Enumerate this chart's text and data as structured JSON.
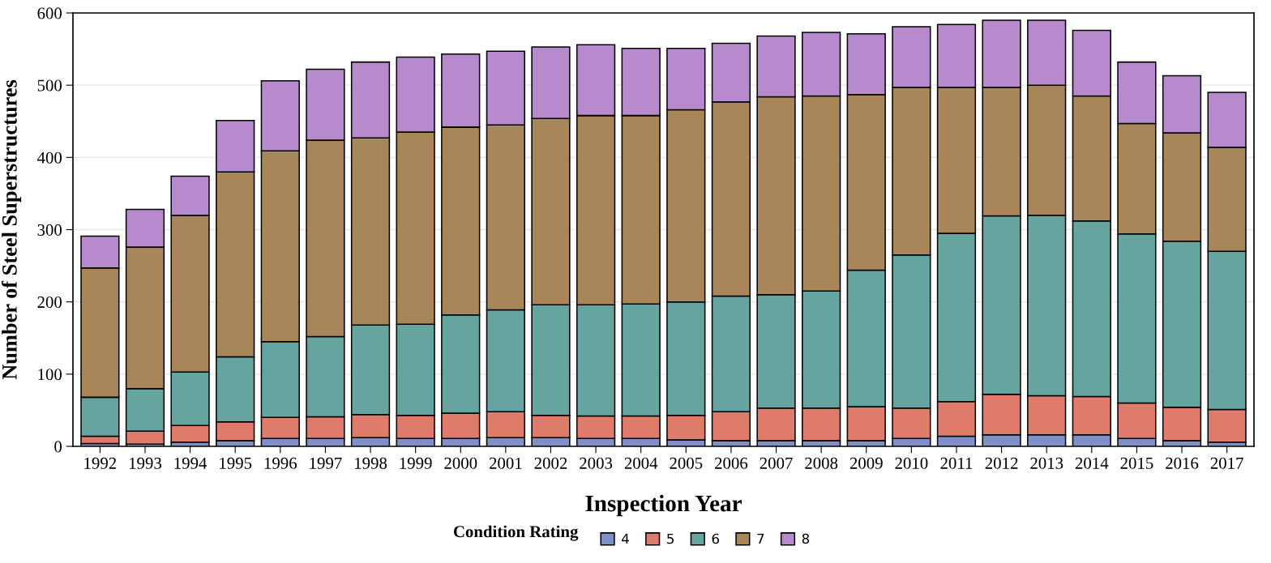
{
  "chart_data": {
    "type": "bar",
    "stacked": true,
    "xlabel": "Inspection Year",
    "ylabel": "Number of Steel Superstructures",
    "legend_title": "Condition Rating",
    "legend": "bottom",
    "grid": "y",
    "categories": [
      "1992",
      "1993",
      "1994",
      "1995",
      "1996",
      "1997",
      "1998",
      "1999",
      "2000",
      "2001",
      "2002",
      "2003",
      "2004",
      "2005",
      "2006",
      "2007",
      "2008",
      "2009",
      "2010",
      "2011",
      "2012",
      "2013",
      "2014",
      "2015",
      "2016",
      "2017"
    ],
    "ylim": [
      0,
      600
    ],
    "yticks": [
      0,
      100,
      200,
      300,
      400,
      500,
      600
    ],
    "series": [
      {
        "name": "4",
        "color": "#7f8fc8",
        "values": [
          4,
          3,
          6,
          8,
          11,
          11,
          12,
          11,
          11,
          12,
          12,
          11,
          11,
          9,
          8,
          8,
          8,
          8,
          11,
          14,
          16,
          16,
          16,
          11,
          8,
          6
        ]
      },
      {
        "name": "5",
        "color": "#df7b6b",
        "values": [
          10,
          18,
          23,
          26,
          29,
          30,
          32,
          32,
          35,
          36,
          31,
          31,
          31,
          34,
          40,
          45,
          45,
          47,
          42,
          48,
          56,
          54,
          53,
          49,
          46,
          45
        ]
      },
      {
        "name": "6",
        "color": "#66a59f",
        "values": [
          54,
          59,
          74,
          90,
          105,
          111,
          124,
          126,
          136,
          141,
          153,
          154,
          155,
          157,
          160,
          157,
          162,
          189,
          212,
          233,
          247,
          250,
          243,
          234,
          230,
          219
        ]
      },
      {
        "name": "7",
        "color": "#a8865a",
        "values": [
          179,
          196,
          217,
          256,
          264,
          272,
          259,
          266,
          260,
          256,
          258,
          262,
          261,
          266,
          269,
          274,
          270,
          243,
          232,
          202,
          178,
          180,
          173,
          153,
          150,
          144
        ]
      },
      {
        "name": "8",
        "color": "#b68acc",
        "values": [
          44,
          52,
          54,
          71,
          97,
          98,
          105,
          104,
          101,
          102,
          99,
          98,
          93,
          85,
          81,
          84,
          88,
          84,
          84,
          87,
          93,
          90,
          91,
          85,
          79,
          76
        ]
      }
    ]
  }
}
